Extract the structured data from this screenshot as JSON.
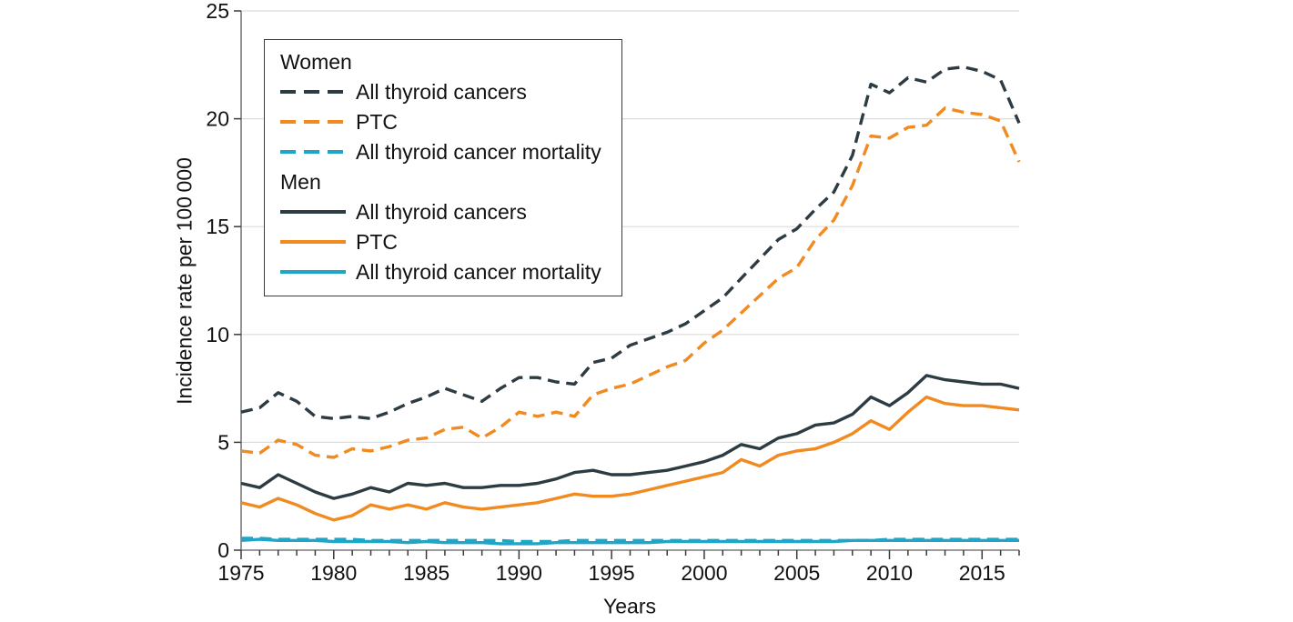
{
  "style": {
    "background": "#ffffff",
    "grid_color": "#dcdcdc",
    "axis_color": "#7a7a7a",
    "tick_color": "#3a3a3a",
    "text_color": "#111111",
    "legend_border": "#3c3c3c",
    "charcoal": "#2d3b43",
    "orange": "#f08a21",
    "teal": "#21a5c7"
  },
  "axes": {
    "x": {
      "min": 1975,
      "max": 2017,
      "major_ticks": [
        1975,
        1980,
        1985,
        1990,
        1995,
        2000,
        2005,
        2010,
        2015
      ]
    },
    "y": {
      "min": 0,
      "max": 25,
      "ticks": [
        0,
        5,
        10,
        15,
        20,
        25
      ]
    }
  },
  "legend": {
    "groups": [
      {
        "label": "Women",
        "items": [
          "All thyroid cancers",
          "PTC",
          "All thyroid cancer mortality"
        ]
      },
      {
        "label": "Men",
        "items": [
          "All thyroid cancers",
          "PTC",
          "All thyroid cancer mortality"
        ]
      }
    ]
  },
  "chart_data": {
    "type": "line",
    "title": "",
    "xlabel": "Years",
    "ylabel": "Incidence rate per 100 000",
    "xlim": [
      1975,
      2017
    ],
    "ylim": [
      0,
      25
    ],
    "grid": "horizontal",
    "legend_position": "top-left",
    "x": [
      1975,
      1976,
      1977,
      1978,
      1979,
      1980,
      1981,
      1982,
      1983,
      1984,
      1985,
      1986,
      1987,
      1988,
      1989,
      1990,
      1991,
      1992,
      1993,
      1994,
      1995,
      1996,
      1997,
      1998,
      1999,
      2000,
      2001,
      2002,
      2003,
      2004,
      2005,
      2006,
      2007,
      2008,
      2009,
      2010,
      2011,
      2012,
      2013,
      2014,
      2015,
      2016,
      2017
    ],
    "series": [
      {
        "id": "women-all",
        "group": "Women",
        "name": "All thyroid cancers",
        "color": "#2d3b43",
        "dashed": true,
        "values": [
          6.4,
          6.6,
          7.3,
          6.9,
          6.2,
          6.1,
          6.2,
          6.1,
          6.4,
          6.8,
          7.1,
          7.5,
          7.2,
          6.9,
          7.5,
          8.0,
          8.0,
          7.8,
          7.7,
          8.7,
          8.9,
          9.5,
          9.8,
          10.1,
          10.5,
          11.1,
          11.7,
          12.6,
          13.5,
          14.4,
          14.9,
          15.8,
          16.6,
          18.3,
          21.6,
          21.2,
          21.9,
          21.7,
          22.3,
          22.4,
          22.2,
          21.8,
          19.8
        ]
      },
      {
        "id": "women-ptc",
        "group": "Women",
        "name": "PTC",
        "color": "#f08a21",
        "dashed": true,
        "values": [
          4.6,
          4.5,
          5.1,
          4.9,
          4.4,
          4.3,
          4.7,
          4.6,
          4.8,
          5.1,
          5.2,
          5.6,
          5.7,
          5.2,
          5.7,
          6.4,
          6.2,
          6.4,
          6.2,
          7.2,
          7.5,
          7.7,
          8.1,
          8.5,
          8.8,
          9.6,
          10.2,
          11.0,
          11.8,
          12.6,
          13.1,
          14.4,
          15.3,
          16.9,
          19.2,
          19.1,
          19.6,
          19.7,
          20.5,
          20.3,
          20.2,
          19.9,
          18.0
        ]
      },
      {
        "id": "women-mortality",
        "group": "Women",
        "name": "All thyroid cancer mortality",
        "color": "#21a5c7",
        "dashed": true,
        "values": [
          0.55,
          0.55,
          0.5,
          0.5,
          0.5,
          0.5,
          0.5,
          0.45,
          0.45,
          0.45,
          0.45,
          0.45,
          0.45,
          0.45,
          0.45,
          0.4,
          0.4,
          0.4,
          0.45,
          0.45,
          0.45,
          0.45,
          0.45,
          0.45,
          0.45,
          0.45,
          0.45,
          0.45,
          0.45,
          0.45,
          0.45,
          0.45,
          0.45,
          0.45,
          0.45,
          0.5,
          0.5,
          0.5,
          0.5,
          0.5,
          0.5,
          0.5,
          0.5
        ]
      },
      {
        "id": "men-all",
        "group": "Men",
        "name": "All thyroid cancers",
        "color": "#2d3b43",
        "dashed": false,
        "values": [
          3.1,
          2.9,
          3.5,
          3.1,
          2.7,
          2.4,
          2.6,
          2.9,
          2.7,
          3.1,
          3.0,
          3.1,
          2.9,
          2.9,
          3.0,
          3.0,
          3.1,
          3.3,
          3.6,
          3.7,
          3.5,
          3.5,
          3.6,
          3.7,
          3.9,
          4.1,
          4.4,
          4.9,
          4.7,
          5.2,
          5.4,
          5.8,
          5.9,
          6.3,
          7.1,
          6.7,
          7.3,
          8.1,
          7.9,
          7.8,
          7.7,
          7.7,
          7.5
        ]
      },
      {
        "id": "men-ptc",
        "group": "Men",
        "name": "PTC",
        "color": "#f08a21",
        "dashed": false,
        "values": [
          2.2,
          2.0,
          2.4,
          2.1,
          1.7,
          1.4,
          1.6,
          2.1,
          1.9,
          2.1,
          1.9,
          2.2,
          2.0,
          1.9,
          2.0,
          2.1,
          2.2,
          2.4,
          2.6,
          2.5,
          2.5,
          2.6,
          2.8,
          3.0,
          3.2,
          3.4,
          3.6,
          4.2,
          3.9,
          4.4,
          4.6,
          4.7,
          5.0,
          5.4,
          6.0,
          5.6,
          6.4,
          7.1,
          6.8,
          6.7,
          6.7,
          6.6,
          6.5
        ]
      },
      {
        "id": "men-mortality",
        "group": "Men",
        "name": "All thyroid cancer mortality",
        "color": "#21a5c7",
        "dashed": false,
        "values": [
          0.45,
          0.5,
          0.45,
          0.45,
          0.45,
          0.4,
          0.4,
          0.4,
          0.4,
          0.35,
          0.4,
          0.35,
          0.35,
          0.35,
          0.3,
          0.3,
          0.3,
          0.35,
          0.35,
          0.35,
          0.35,
          0.35,
          0.35,
          0.4,
          0.4,
          0.4,
          0.4,
          0.4,
          0.4,
          0.4,
          0.4,
          0.4,
          0.4,
          0.45,
          0.45,
          0.45,
          0.45,
          0.45,
          0.45,
          0.45,
          0.45,
          0.45,
          0.45
        ]
      }
    ]
  }
}
